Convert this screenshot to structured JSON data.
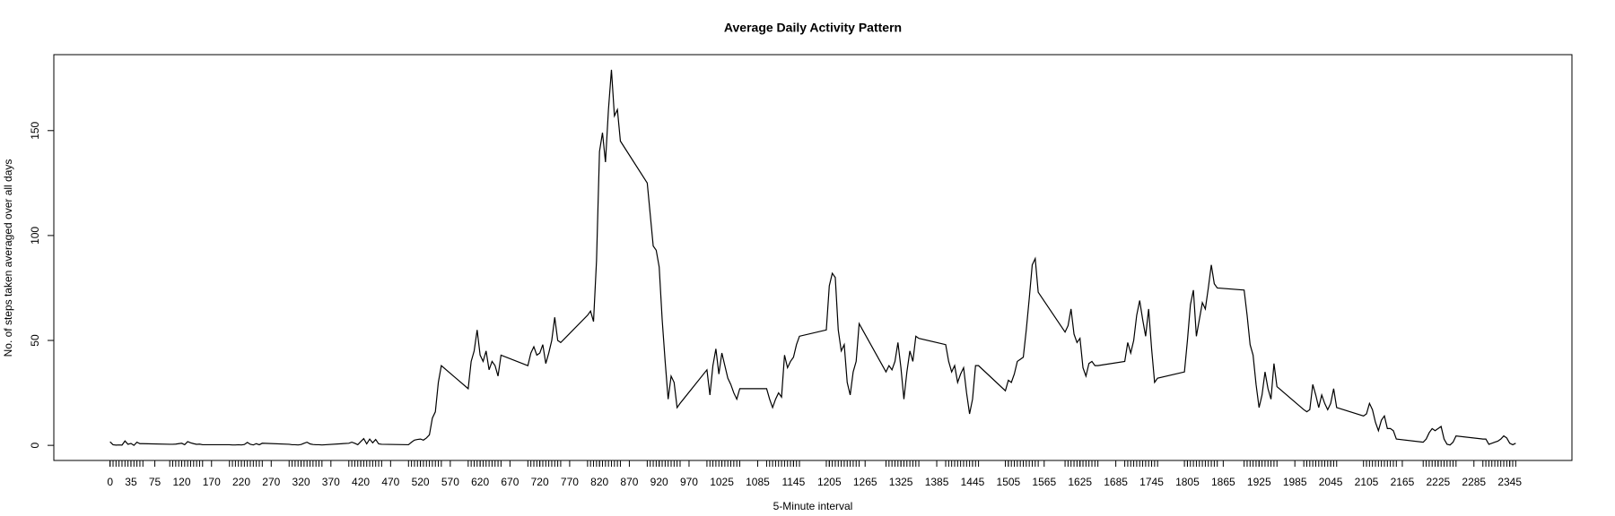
{
  "chart_data": {
    "type": "line",
    "title": "Average Daily Activity Pattern",
    "xlabel": "5-Minute interval",
    "ylabel": "No. of steps taken averaged over all days",
    "color": "#000000",
    "x": [
      0,
      5,
      10,
      15,
      20,
      25,
      30,
      35,
      40,
      45,
      50,
      55,
      100,
      105,
      110,
      115,
      120,
      125,
      130,
      135,
      140,
      145,
      150,
      155,
      200,
      205,
      210,
      215,
      220,
      225,
      230,
      235,
      240,
      245,
      250,
      255,
      300,
      305,
      310,
      315,
      320,
      325,
      330,
      335,
      340,
      345,
      350,
      355,
      400,
      405,
      410,
      415,
      420,
      425,
      430,
      435,
      440,
      445,
      450,
      455,
      500,
      505,
      510,
      515,
      520,
      525,
      530,
      535,
      540,
      545,
      550,
      555,
      600,
      605,
      610,
      615,
      620,
      625,
      630,
      635,
      640,
      645,
      650,
      655,
      700,
      705,
      710,
      715,
      720,
      725,
      730,
      735,
      740,
      745,
      750,
      755,
      800,
      805,
      810,
      815,
      820,
      825,
      830,
      835,
      840,
      845,
      850,
      855,
      900,
      905,
      910,
      915,
      920,
      925,
      930,
      935,
      940,
      945,
      950,
      955,
      1000,
      1005,
      1010,
      1015,
      1020,
      1025,
      1030,
      1035,
      1040,
      1045,
      1050,
      1055,
      1100,
      1105,
      1110,
      1115,
      1120,
      1125,
      1130,
      1135,
      1140,
      1145,
      1150,
      1155,
      1200,
      1205,
      1210,
      1215,
      1220,
      1225,
      1230,
      1235,
      1240,
      1245,
      1250,
      1255,
      1300,
      1305,
      1310,
      1315,
      1320,
      1325,
      1330,
      1335,
      1340,
      1345,
      1350,
      1355,
      1400,
      1405,
      1410,
      1415,
      1420,
      1425,
      1430,
      1435,
      1440,
      1445,
      1450,
      1455,
      1500,
      1505,
      1510,
      1515,
      1520,
      1525,
      1530,
      1535,
      1540,
      1545,
      1550,
      1555,
      1600,
      1605,
      1610,
      1615,
      1620,
      1625,
      1630,
      1635,
      1640,
      1645,
      1650,
      1655,
      1700,
      1705,
      1710,
      1715,
      1720,
      1725,
      1730,
      1735,
      1740,
      1745,
      1750,
      1755,
      1800,
      1805,
      1810,
      1815,
      1820,
      1825,
      1830,
      1835,
      1840,
      1845,
      1850,
      1855,
      1900,
      1905,
      1910,
      1915,
      1920,
      1925,
      1930,
      1935,
      1940,
      1945,
      1950,
      1955,
      2000,
      2005,
      2010,
      2015,
      2020,
      2025,
      2030,
      2035,
      2040,
      2045,
      2050,
      2055,
      2100,
      2105,
      2110,
      2115,
      2120,
      2125,
      2130,
      2135,
      2140,
      2145,
      2150,
      2155,
      2200,
      2205,
      2210,
      2215,
      2220,
      2225,
      2230,
      2235,
      2240,
      2245,
      2250,
      2255,
      2300,
      2305,
      2310,
      2315,
      2320,
      2325,
      2330,
      2335,
      2340,
      2345,
      2350,
      2355
    ],
    "values": [
      1.7,
      0.3,
      0.1,
      0.2,
      0.1,
      2.1,
      0.5,
      0.9,
      0,
      1.5,
      0.8,
      0.8,
      0.5,
      0.5,
      0.6,
      0.8,
      1,
      0.3,
      1.8,
      1.2,
      0.8,
      0.5,
      0.6,
      0.3,
      0.3,
      0.2,
      0.2,
      0.3,
      0.2,
      0.4,
      1.4,
      0.5,
      0.2,
      0.8,
      0.3,
      1,
      0.5,
      0.3,
      0.3,
      0.2,
      0.4,
      1,
      1.5,
      0.7,
      0.4,
      0.3,
      0.3,
      0.2,
      1,
      1.5,
      1,
      0.3,
      1.8,
      3.2,
      0.7,
      3,
      1.2,
      2.8,
      0.7,
      0.5,
      0.3,
      1.5,
      2.5,
      2.8,
      3,
      2.5,
      3.5,
      5,
      13,
      16,
      30,
      38,
      27,
      40,
      45,
      55,
      43,
      40,
      45,
      36,
      40,
      38,
      33,
      43,
      38,
      44,
      47,
      43,
      44,
      48,
      39,
      44,
      50,
      61,
      50,
      49,
      62,
      64,
      59,
      88,
      140,
      149,
      135,
      160,
      179,
      157,
      160,
      145,
      125,
      110,
      95,
      93,
      85,
      60,
      40,
      22,
      33,
      30,
      18,
      20,
      36,
      24,
      38,
      46,
      34,
      44,
      38,
      32,
      29,
      25,
      22,
      27,
      27,
      22,
      18,
      22,
      25,
      23,
      43,
      37,
      40,
      42,
      48,
      52,
      55,
      76,
      82,
      80,
      55,
      45,
      48,
      30,
      24,
      35,
      40,
      58,
      35,
      38,
      36,
      40,
      49,
      37,
      22,
      35,
      45,
      40,
      52,
      51,
      48,
      40,
      35,
      38,
      30,
      34,
      37,
      25,
      15,
      22,
      38,
      38,
      26,
      31,
      30,
      34,
      40,
      41,
      42,
      55,
      70,
      86,
      89,
      73,
      54,
      57,
      65,
      53,
      49,
      51,
      37,
      33,
      39,
      40,
      38,
      38,
      40,
      49,
      44,
      50,
      62,
      69,
      60,
      52,
      65,
      46,
      30,
      32,
      35,
      50,
      67,
      74,
      52,
      60,
      68,
      65,
      75,
      86,
      77,
      75,
      74,
      62,
      48,
      43,
      29,
      18,
      24,
      35,
      27,
      22,
      39,
      28,
      17,
      16,
      17,
      29,
      24,
      18,
      24,
      20,
      17,
      20,
      27,
      18,
      14,
      15,
      20,
      17,
      11,
      7,
      12,
      14,
      8,
      8,
      7,
      3,
      1.5,
      3,
      6,
      8,
      7,
      8,
      9,
      3,
      0.5,
      0.2,
      1.5,
      4.5,
      3,
      3,
      0.5,
      1,
      1.5,
      2,
      3,
      4.5,
      3.5,
      1,
      0.3,
      1
    ],
    "xlim": [
      -94.2,
      2449.2
    ],
    "xticks": [
      0,
      35,
      75,
      120,
      170,
      220,
      270,
      320,
      370,
      420,
      470,
      520,
      570,
      620,
      670,
      720,
      770,
      820,
      870,
      920,
      970,
      1025,
      1085,
      1145,
      1205,
      1265,
      1325,
      1385,
      1445,
      1505,
      1565,
      1625,
      1685,
      1745,
      1805,
      1865,
      1925,
      1985,
      2045,
      2105,
      2165,
      2225,
      2285,
      2345
    ],
    "ylim": [
      -7.2,
      186.2
    ],
    "yticks": [
      0,
      50,
      100,
      150
    ]
  }
}
